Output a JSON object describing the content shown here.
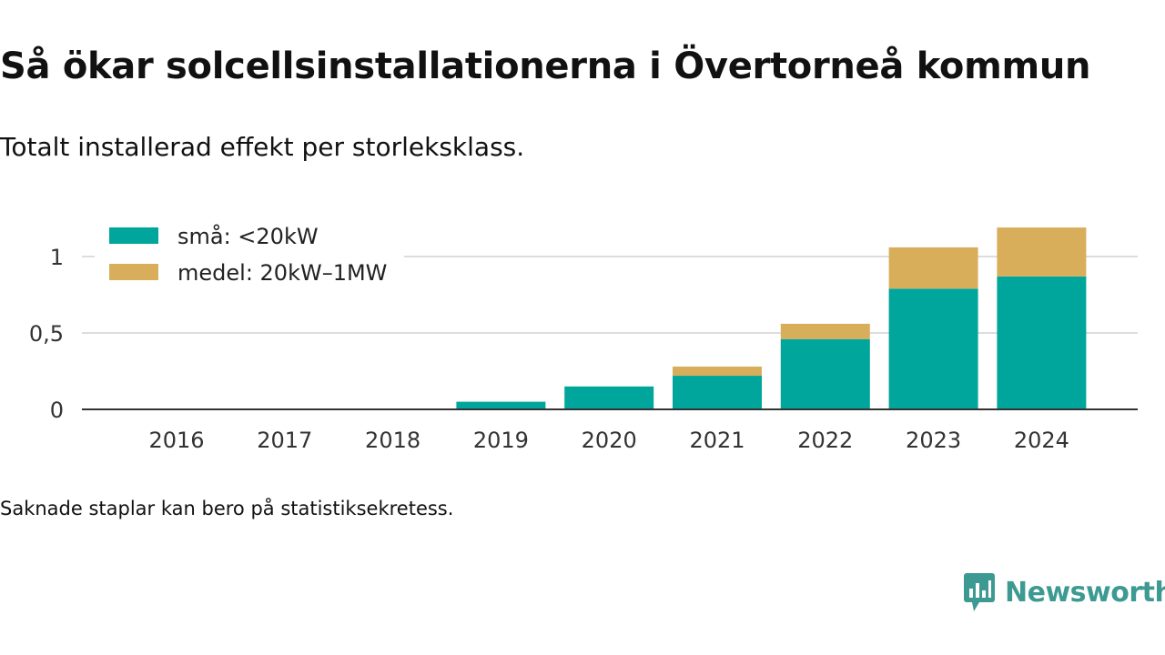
{
  "title": "Så ökar solcellsinstallationerna i Övertorneå kommun",
  "subtitle": "Totalt installerad effekt per storleksklass.",
  "footnote": "Saknade staplar kan bero på statistiksekretess.",
  "logo": {
    "name": "Newsworthy",
    "icon": "newsworthy-logo-icon"
  },
  "chart_data": {
    "type": "bar",
    "stacked": true,
    "categories": [
      "2016",
      "2017",
      "2018",
      "2019",
      "2020",
      "2021",
      "2022",
      "2023",
      "2024"
    ],
    "series": [
      {
        "name": "små: <20kW",
        "color": "#00a69b",
        "values": [
          0,
          0,
          0,
          0.05,
          0.15,
          0.22,
          0.46,
          0.79,
          0.87
        ]
      },
      {
        "name": "medel: 20kW–1MW",
        "color": "#d9ae5b",
        "values": [
          0,
          0,
          0,
          0,
          0,
          0.06,
          0.1,
          0.27,
          0.32
        ]
      }
    ],
    "yticks": [
      0,
      0.5,
      1
    ],
    "ytick_labels": [
      "0",
      "0,5",
      "1"
    ],
    "ylim": [
      0,
      1.25
    ],
    "grid": true,
    "legend_position": "top-left"
  }
}
